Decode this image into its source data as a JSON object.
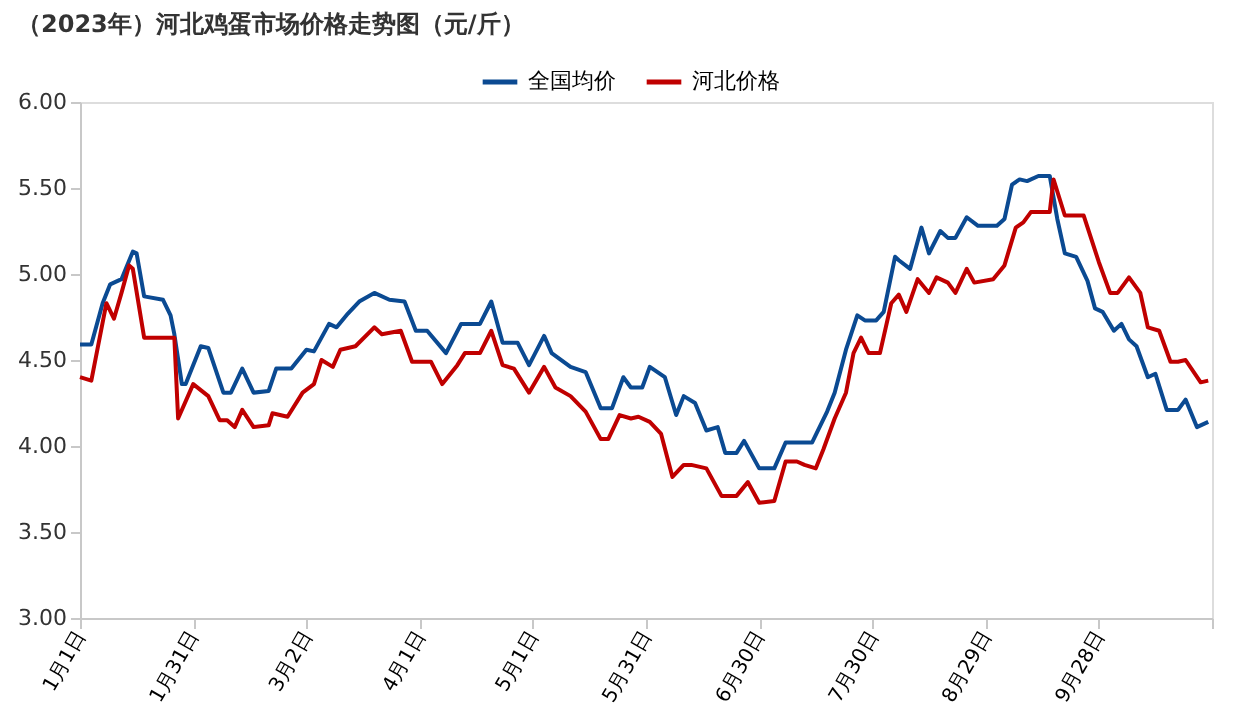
{
  "chart_data": {
    "type": "line",
    "title": "（2023年）河北鸡蛋市场价格走势图（元/斤）",
    "xlim": [
      "2023-01-01",
      "2023-10-28"
    ],
    "xticks": [
      {
        "value": "2023-01-01",
        "label": "1月1日"
      },
      {
        "value": "2023-01-31",
        "label": "1月31日"
      },
      {
        "value": "2023-03-02",
        "label": "3月2日"
      },
      {
        "value": "2023-04-01",
        "label": "4月1日"
      },
      {
        "value": "2023-05-01",
        "label": "5月1日"
      },
      {
        "value": "2023-05-31",
        "label": "5月31日"
      },
      {
        "value": "2023-06-30",
        "label": "6月30日"
      },
      {
        "value": "2023-07-30",
        "label": "7月30日"
      },
      {
        "value": "2023-08-29",
        "label": "8月29日"
      },
      {
        "value": "2023-09-28",
        "label": "9月28日"
      },
      {
        "value": "2023-10-28",
        "label": null
      }
    ],
    "ylim": [
      3,
      6
    ],
    "yticks": [
      {
        "value": 3,
        "label": "3.00"
      },
      {
        "value": 3.5,
        "label": "3.50"
      },
      {
        "value": 4,
        "label": "4.00"
      },
      {
        "value": 4.5,
        "label": "4.50"
      },
      {
        "value": 5,
        "label": "5.00"
      },
      {
        "value": 5.5,
        "label": "5.50"
      },
      {
        "value": 6,
        "label": "6.00"
      }
    ],
    "grid": false,
    "legend": "top",
    "marker": "none",
    "line_style": "solid",
    "series": [
      {
        "name": "全国均价",
        "color": "#0b4a92",
        "x": [
          "2023-01-01",
          "2023-01-04",
          "2023-01-07",
          "2023-01-09",
          "2023-01-12",
          "2023-01-15",
          "2023-01-16",
          "2023-01-18",
          "2023-01-23",
          "2023-01-25",
          "2023-01-26",
          "2023-01-28",
          "2023-01-29",
          "2023-02-02",
          "2023-02-04",
          "2023-02-08",
          "2023-02-10",
          "2023-02-13",
          "2023-02-16",
          "2023-02-20",
          "2023-02-22",
          "2023-02-26",
          "2023-03-02",
          "2023-03-04",
          "2023-03-08",
          "2023-03-10",
          "2023-03-13",
          "2023-03-16",
          "2023-03-20",
          "2023-03-24",
          "2023-03-28",
          "2023-03-31",
          "2023-04-03",
          "2023-04-08",
          "2023-04-12",
          "2023-04-17",
          "2023-04-20",
          "2023-04-23",
          "2023-04-27",
          "2023-04-30",
          "2023-05-04",
          "2023-05-06",
          "2023-05-11",
          "2023-05-15",
          "2023-05-19",
          "2023-05-22",
          "2023-05-25",
          "2023-05-27",
          "2023-05-30",
          "2023-06-01",
          "2023-06-05",
          "2023-06-08",
          "2023-06-10",
          "2023-06-13",
          "2023-06-16",
          "2023-06-19",
          "2023-06-21",
          "2023-06-24",
          "2023-06-26",
          "2023-06-30",
          "2023-07-04",
          "2023-07-07",
          "2023-07-14",
          "2023-07-18",
          "2023-07-20",
          "2023-07-23",
          "2023-07-26",
          "2023-07-28",
          "2023-07-31",
          "2023-08-02",
          "2023-08-05",
          "2023-08-06",
          "2023-08-09",
          "2023-08-12",
          "2023-08-14",
          "2023-08-17",
          "2023-08-19",
          "2023-08-21",
          "2023-08-24",
          "2023-08-27",
          "2023-09-01",
          "2023-09-03",
          "2023-09-05",
          "2023-09-07",
          "2023-09-09",
          "2023-09-12",
          "2023-09-15",
          "2023-09-17",
          "2023-09-19",
          "2023-09-22",
          "2023-09-25",
          "2023-09-27",
          "2023-09-29",
          "2023-10-02",
          "2023-10-04",
          "2023-10-06",
          "2023-10-08",
          "2023-10-11",
          "2023-10-13",
          "2023-10-16",
          "2023-10-19",
          "2023-10-21",
          "2023-10-24",
          "2023-10-27"
        ],
        "values": [
          4.59,
          4.59,
          4.83,
          4.94,
          4.97,
          5.13,
          5.12,
          4.87,
          4.85,
          4.76,
          4.65,
          4.36,
          4.36,
          4.58,
          4.57,
          4.31,
          4.31,
          4.45,
          4.31,
          4.32,
          4.45,
          4.45,
          4.56,
          4.55,
          4.71,
          4.69,
          4.77,
          4.84,
          4.89,
          4.85,
          4.84,
          4.67,
          4.67,
          4.54,
          4.71,
          4.71,
          4.84,
          4.6,
          4.6,
          4.47,
          4.64,
          4.54,
          4.46,
          4.43,
          4.22,
          4.22,
          4.4,
          4.34,
          4.34,
          4.46,
          4.4,
          4.18,
          4.29,
          4.25,
          4.09,
          4.11,
          3.96,
          3.96,
          4.03,
          3.87,
          3.87,
          4.02,
          4.02,
          4.2,
          4.31,
          4.56,
          4.76,
          4.73,
          4.73,
          4.78,
          5.1,
          5.08,
          5.03,
          5.27,
          5.12,
          5.25,
          5.21,
          5.21,
          5.33,
          5.28,
          5.28,
          5.32,
          5.52,
          5.55,
          5.54,
          5.57,
          5.57,
          5.32,
          5.12,
          5.1,
          4.96,
          4.8,
          4.78,
          4.67,
          4.71,
          4.62,
          4.58,
          4.4,
          4.42,
          4.21,
          4.21,
          4.27,
          4.11,
          4.14
        ]
      },
      {
        "name": "河北价格",
        "color": "#c00000",
        "x": [
          "2023-01-01",
          "2023-01-04",
          "2023-01-08",
          "2023-01-10",
          "2023-01-12",
          "2023-01-14",
          "2023-01-15",
          "2023-01-18",
          "2023-01-26",
          "2023-01-27",
          "2023-01-31",
          "2023-02-04",
          "2023-02-07",
          "2023-02-09",
          "2023-02-11",
          "2023-02-13",
          "2023-02-16",
          "2023-02-20",
          "2023-02-21",
          "2023-02-25",
          "2023-03-01",
          "2023-03-04",
          "2023-03-06",
          "2023-03-09",
          "2023-03-11",
          "2023-03-15",
          "2023-03-20",
          "2023-03-22",
          "2023-03-27",
          "2023-03-30",
          "2023-04-04",
          "2023-04-07",
          "2023-04-11",
          "2023-04-13",
          "2023-04-17",
          "2023-04-20",
          "2023-04-23",
          "2023-04-26",
          "2023-04-30",
          "2023-05-04",
          "2023-05-07",
          "2023-05-11",
          "2023-05-15",
          "2023-05-19",
          "2023-05-21",
          "2023-05-24",
          "2023-05-27",
          "2023-05-29",
          "2023-06-01",
          "2023-06-04",
          "2023-06-07",
          "2023-06-10",
          "2023-06-12",
          "2023-06-16",
          "2023-06-20",
          "2023-06-24",
          "2023-06-27",
          "2023-06-30",
          "2023-07-04",
          "2023-07-07",
          "2023-07-10",
          "2023-07-12",
          "2023-07-15",
          "2023-07-17",
          "2023-07-20",
          "2023-07-23",
          "2023-07-25",
          "2023-07-27",
          "2023-07-29",
          "2023-08-01",
          "2023-08-04",
          "2023-08-06",
          "2023-08-08",
          "2023-08-11",
          "2023-08-14",
          "2023-08-16",
          "2023-08-19",
          "2023-08-21",
          "2023-08-24",
          "2023-08-26",
          "2023-08-31",
          "2023-09-03",
          "2023-09-06",
          "2023-09-08",
          "2023-09-10",
          "2023-09-15",
          "2023-09-16",
          "2023-09-19",
          "2023-09-24",
          "2023-09-28",
          "2023-10-01",
          "2023-10-03",
          "2023-10-06",
          "2023-10-09",
          "2023-10-11",
          "2023-10-14",
          "2023-10-17",
          "2023-10-19",
          "2023-10-21",
          "2023-10-25",
          "2023-10-27"
        ],
        "values": [
          4.4,
          4.38,
          4.83,
          4.74,
          4.89,
          5.05,
          5.03,
          4.63,
          4.63,
          4.16,
          4.36,
          4.29,
          4.15,
          4.15,
          4.11,
          4.21,
          4.11,
          4.12,
          4.19,
          4.17,
          4.31,
          4.36,
          4.5,
          4.46,
          4.56,
          4.58,
          4.69,
          4.65,
          4.67,
          4.49,
          4.49,
          4.36,
          4.47,
          4.54,
          4.54,
          4.67,
          4.47,
          4.45,
          4.31,
          4.46,
          4.34,
          4.29,
          4.2,
          4.04,
          4.04,
          4.18,
          4.16,
          4.17,
          4.14,
          4.07,
          3.82,
          3.89,
          3.89,
          3.87,
          3.71,
          3.71,
          3.79,
          3.67,
          3.68,
          3.91,
          3.91,
          3.89,
          3.87,
          3.98,
          4.16,
          4.31,
          4.54,
          4.63,
          4.54,
          4.54,
          4.83,
          4.88,
          4.78,
          4.97,
          4.89,
          4.98,
          4.95,
          4.89,
          5.03,
          4.95,
          4.97,
          5.05,
          5.27,
          5.3,
          5.36,
          5.36,
          5.55,
          5.34,
          5.34,
          5.07,
          4.89,
          4.89,
          4.98,
          4.89,
          4.69,
          4.67,
          4.49,
          4.49,
          4.5,
          4.37,
          4.38
        ]
      }
    ]
  }
}
